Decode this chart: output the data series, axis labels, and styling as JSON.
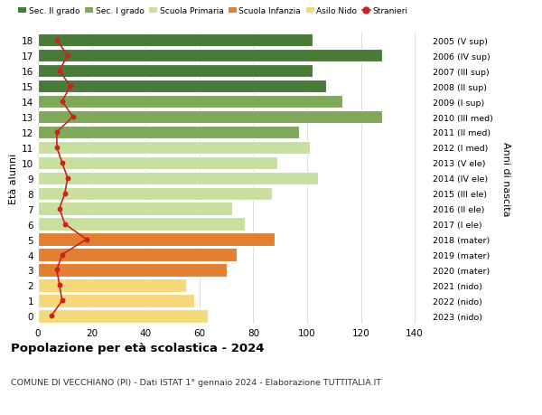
{
  "ages": [
    0,
    1,
    2,
    3,
    4,
    5,
    6,
    7,
    8,
    9,
    10,
    11,
    12,
    13,
    14,
    15,
    16,
    17,
    18
  ],
  "bar_values": [
    63,
    58,
    55,
    70,
    74,
    88,
    77,
    72,
    87,
    104,
    89,
    101,
    97,
    128,
    113,
    107,
    102,
    128,
    102
  ],
  "bar_colors": [
    "#f5d87a",
    "#f5d87a",
    "#f5d87a",
    "#e08030",
    "#e08030",
    "#e08030",
    "#c8dfa0",
    "#c8dfa0",
    "#c8dfa0",
    "#c8dfa0",
    "#c8dfa0",
    "#c8dfa0",
    "#7fa85a",
    "#7fa85a",
    "#7fa85a",
    "#4a7a38",
    "#4a7a38",
    "#4a7a38",
    "#4a7a38"
  ],
  "stranieri_values": [
    5,
    9,
    8,
    7,
    9,
    18,
    10,
    8,
    10,
    11,
    9,
    7,
    7,
    13,
    9,
    12,
    8,
    11,
    7
  ],
  "right_labels": [
    "2023 (nido)",
    "2022 (nido)",
    "2021 (nido)",
    "2020 (mater)",
    "2019 (mater)",
    "2018 (mater)",
    "2017 (I ele)",
    "2016 (II ele)",
    "2015 (III ele)",
    "2014 (IV ele)",
    "2013 (V ele)",
    "2012 (I med)",
    "2011 (II med)",
    "2010 (III med)",
    "2009 (I sup)",
    "2008 (II sup)",
    "2007 (III sup)",
    "2006 (IV sup)",
    "2005 (V sup)"
  ],
  "legend_labels": [
    "Sec. II grado",
    "Sec. I grado",
    "Scuola Primaria",
    "Scuola Infanzia",
    "Asilo Nido",
    "Stranieri"
  ],
  "legend_colors": [
    "#4a7a38",
    "#7fa85a",
    "#c8dfa0",
    "#e08030",
    "#f5d87a",
    "#cc2222"
  ],
  "title": "Popolazione per età scolastica - 2024",
  "subtitle": "COMUNE DI VECCHIANO (PI) - Dati ISTAT 1° gennaio 2024 - Elaborazione TUTTITALIA.IT",
  "ylabel_left": "Età alunni",
  "ylabel_right": "Anni di nascita",
  "xlim": [
    0,
    145
  ],
  "xticks": [
    0,
    20,
    40,
    60,
    80,
    100,
    120,
    140
  ],
  "background_color": "#ffffff",
  "grid_color": "#dddddd"
}
